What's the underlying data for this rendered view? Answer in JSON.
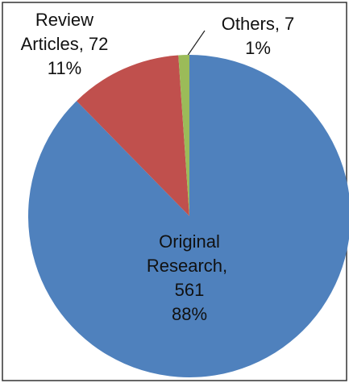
{
  "chart_data": {
    "type": "pie",
    "categories": [
      "Original Research",
      "Review Articles",
      "Others"
    ],
    "values": [
      561,
      72,
      7
    ],
    "percents": [
      88,
      11,
      1
    ],
    "percent_labels": [
      "88%",
      "11%",
      "1%"
    ],
    "label_separator": ",",
    "colors": [
      "#4f81bd",
      "#c0504d",
      "#9bbb59"
    ]
  }
}
